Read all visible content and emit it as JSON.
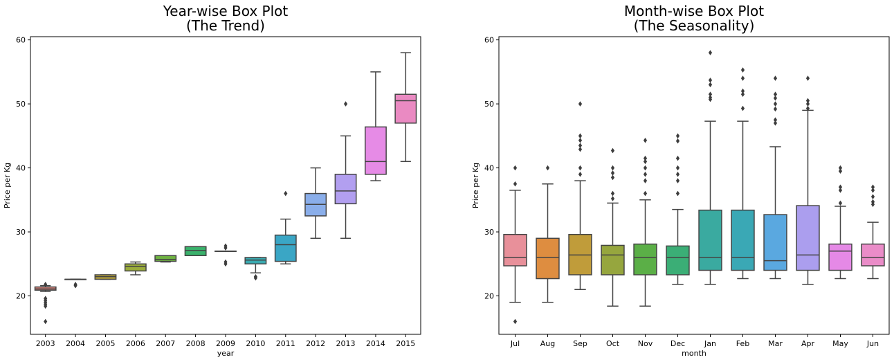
{
  "chart_data": [
    {
      "type": "box",
      "title_lines": [
        "Year-wise Box Plot",
        "(The Trend)"
      ],
      "xlabel": "year",
      "ylabel": "Price per Kg",
      "ylim": [
        14,
        60.5
      ],
      "yticks": [
        20,
        30,
        40,
        50,
        60
      ],
      "grid": false,
      "categories": [
        "2003",
        "2004",
        "2005",
        "2006",
        "2007",
        "2008",
        "2009",
        "2010",
        "2011",
        "2012",
        "2013",
        "2014",
        "2015"
      ],
      "boxes": [
        {
          "category": "2003",
          "color": "#e8877f",
          "whisker_low": 20.7,
          "q1": 20.9,
          "median": 21.1,
          "q3": 21.4,
          "whisker_high": 21.6,
          "outliers": [
            21.8,
            19.6,
            19.3,
            19.0,
            18.7,
            18.4,
            16.0
          ]
        },
        {
          "category": "2004",
          "color": "#d39b3c",
          "whisker_low": 22.6,
          "q1": 22.6,
          "median": 22.6,
          "q3": 22.6,
          "whisker_high": 22.6,
          "outliers": [
            21.8,
            21.6
          ]
        },
        {
          "category": "2005",
          "color": "#b8a33a",
          "whisker_low": 22.6,
          "q1": 22.6,
          "median": 23.0,
          "q3": 23.3,
          "whisker_high": 23.3,
          "outliers": []
        },
        {
          "category": "2006",
          "color": "#9aac3c",
          "whisker_low": 23.3,
          "q1": 23.9,
          "median": 24.6,
          "q3": 25.0,
          "whisker_high": 25.3,
          "outliers": []
        },
        {
          "category": "2007",
          "color": "#6fb142",
          "whisker_low": 25.3,
          "q1": 25.4,
          "median": 25.7,
          "q3": 26.3,
          "whisker_high": 26.3,
          "outliers": []
        },
        {
          "category": "2008",
          "color": "#3ab26c",
          "whisker_low": 26.3,
          "q1": 26.3,
          "median": 27.1,
          "q3": 27.7,
          "whisker_high": 27.7,
          "outliers": []
        },
        {
          "category": "2009",
          "color": "#3aae98",
          "whisker_low": 27.0,
          "q1": 27.0,
          "median": 27.0,
          "q3": 27.0,
          "whisker_high": 27.0,
          "outliers": [
            27.8,
            27.5,
            25.3,
            25.0
          ]
        },
        {
          "category": "2010",
          "color": "#3aaab0",
          "whisker_low": 23.6,
          "q1": 25.0,
          "median": 25.6,
          "q3": 26.0,
          "whisker_high": 26.0,
          "outliers": [
            23.0,
            22.8
          ]
        },
        {
          "category": "2011",
          "color": "#3aa6c5",
          "whisker_low": 25.0,
          "q1": 25.4,
          "median": 28.0,
          "q3": 29.5,
          "whisker_high": 32.0,
          "outliers": [
            36.0
          ]
        },
        {
          "category": "2012",
          "color": "#8aaeea",
          "whisker_low": 29.0,
          "q1": 32.5,
          "median": 34.3,
          "q3": 36.0,
          "whisker_high": 40.0,
          "outliers": []
        },
        {
          "category": "2013",
          "color": "#b29ff0",
          "whisker_low": 29.0,
          "q1": 34.4,
          "median": 36.4,
          "q3": 39.0,
          "whisker_high": 45.0,
          "outliers": [
            50.0
          ]
        },
        {
          "category": "2014",
          "color": "#e68be6",
          "whisker_low": 38.0,
          "q1": 39.0,
          "median": 41.0,
          "q3": 46.4,
          "whisker_high": 55.0,
          "outliers": []
        },
        {
          "category": "2015",
          "color": "#ea8ac2",
          "whisker_low": 41.0,
          "q1": 47.0,
          "median": 50.5,
          "q3": 51.5,
          "whisker_high": 58.0,
          "outliers": []
        }
      ]
    },
    {
      "type": "box",
      "title_lines": [
        "Month-wise Box Plot",
        "(The Seasonality)"
      ],
      "xlabel": "month",
      "ylabel": "Price per Kg",
      "ylim": [
        14,
        60.5
      ],
      "yticks": [
        20,
        30,
        40,
        50,
        60
      ],
      "grid": false,
      "categories": [
        "Jul",
        "Aug",
        "Sep",
        "Oct",
        "Nov",
        "Dec",
        "Jan",
        "Feb",
        "Mar",
        "Apr",
        "May",
        "Jun"
      ],
      "boxes": [
        {
          "category": "Jul",
          "color": "#e8909a",
          "whisker_low": 19.0,
          "q1": 24.7,
          "median": 26.0,
          "q3": 29.6,
          "whisker_high": 36.5,
          "outliers": [
            40.0,
            37.5,
            16.0
          ]
        },
        {
          "category": "Aug",
          "color": "#de8d40",
          "whisker_low": 19.0,
          "q1": 22.7,
          "median": 26.0,
          "q3": 29.0,
          "whisker_high": 37.5,
          "outliers": [
            40.0
          ]
        },
        {
          "category": "Sep",
          "color": "#c09c3a",
          "whisker_low": 21.0,
          "q1": 23.3,
          "median": 26.4,
          "q3": 29.6,
          "whisker_high": 38.0,
          "outliers": [
            50.0,
            45.0,
            44.3,
            43.5,
            42.9,
            40.0,
            39.0
          ]
        },
        {
          "category": "Oct",
          "color": "#96a63e",
          "whisker_low": 18.4,
          "q1": 23.3,
          "median": 26.4,
          "q3": 27.9,
          "whisker_high": 34.5,
          "outliers": [
            42.7,
            40.0,
            39.2,
            38.5,
            36.0,
            35.2
          ]
        },
        {
          "category": "Nov",
          "color": "#5baf47",
          "whisker_low": 18.4,
          "q1": 23.3,
          "median": 26.0,
          "q3": 28.1,
          "whisker_high": 35.0,
          "outliers": [
            44.3,
            41.5,
            41.0,
            40.0,
            39.0,
            38.0,
            36.0
          ]
        },
        {
          "category": "Dec",
          "color": "#3bae76",
          "whisker_low": 21.8,
          "q1": 23.3,
          "median": 26.0,
          "q3": 27.8,
          "whisker_high": 33.5,
          "outliers": [
            45.0,
            44.2,
            41.5,
            40.0,
            39.0,
            38.0,
            36.0
          ]
        },
        {
          "category": "Jan",
          "color": "#3aaaa0",
          "whisker_low": 21.8,
          "q1": 24.0,
          "median": 26.0,
          "q3": 33.4,
          "whisker_high": 47.3,
          "outliers": [
            58.0,
            53.7,
            53.0,
            51.5,
            51.0,
            50.7
          ]
        },
        {
          "category": "Feb",
          "color": "#3aa8b5",
          "whisker_low": 22.7,
          "q1": 24.0,
          "median": 26.0,
          "q3": 33.4,
          "whisker_high": 47.3,
          "outliers": [
            55.3,
            54.0,
            52.0,
            51.5,
            49.3
          ]
        },
        {
          "category": "Mar",
          "color": "#5aa8e0",
          "whisker_low": 22.7,
          "q1": 24.0,
          "median": 25.5,
          "q3": 32.7,
          "whisker_high": 43.3,
          "outliers": [
            54.0,
            51.5,
            50.9,
            50.0,
            49.2,
            47.5,
            47.0
          ]
        },
        {
          "category": "Apr",
          "color": "#ab9eee",
          "whisker_low": 21.8,
          "q1": 24.0,
          "median": 26.4,
          "q3": 34.1,
          "whisker_high": 49.0,
          "outliers": [
            54.0,
            50.5,
            50.0,
            49.3
          ]
        },
        {
          "category": "May",
          "color": "#e589e6",
          "whisker_low": 22.7,
          "q1": 24.0,
          "median": 27.0,
          "q3": 28.1,
          "whisker_high": 34.0,
          "outliers": [
            40.0,
            39.5,
            37.0,
            36.5,
            34.5
          ]
        },
        {
          "category": "Jun",
          "color": "#ea8cc8",
          "whisker_low": 22.7,
          "q1": 24.7,
          "median": 26.0,
          "q3": 28.1,
          "whisker_high": 31.5,
          "outliers": [
            37.0,
            36.5,
            35.5,
            34.7,
            34.3
          ]
        }
      ]
    }
  ]
}
